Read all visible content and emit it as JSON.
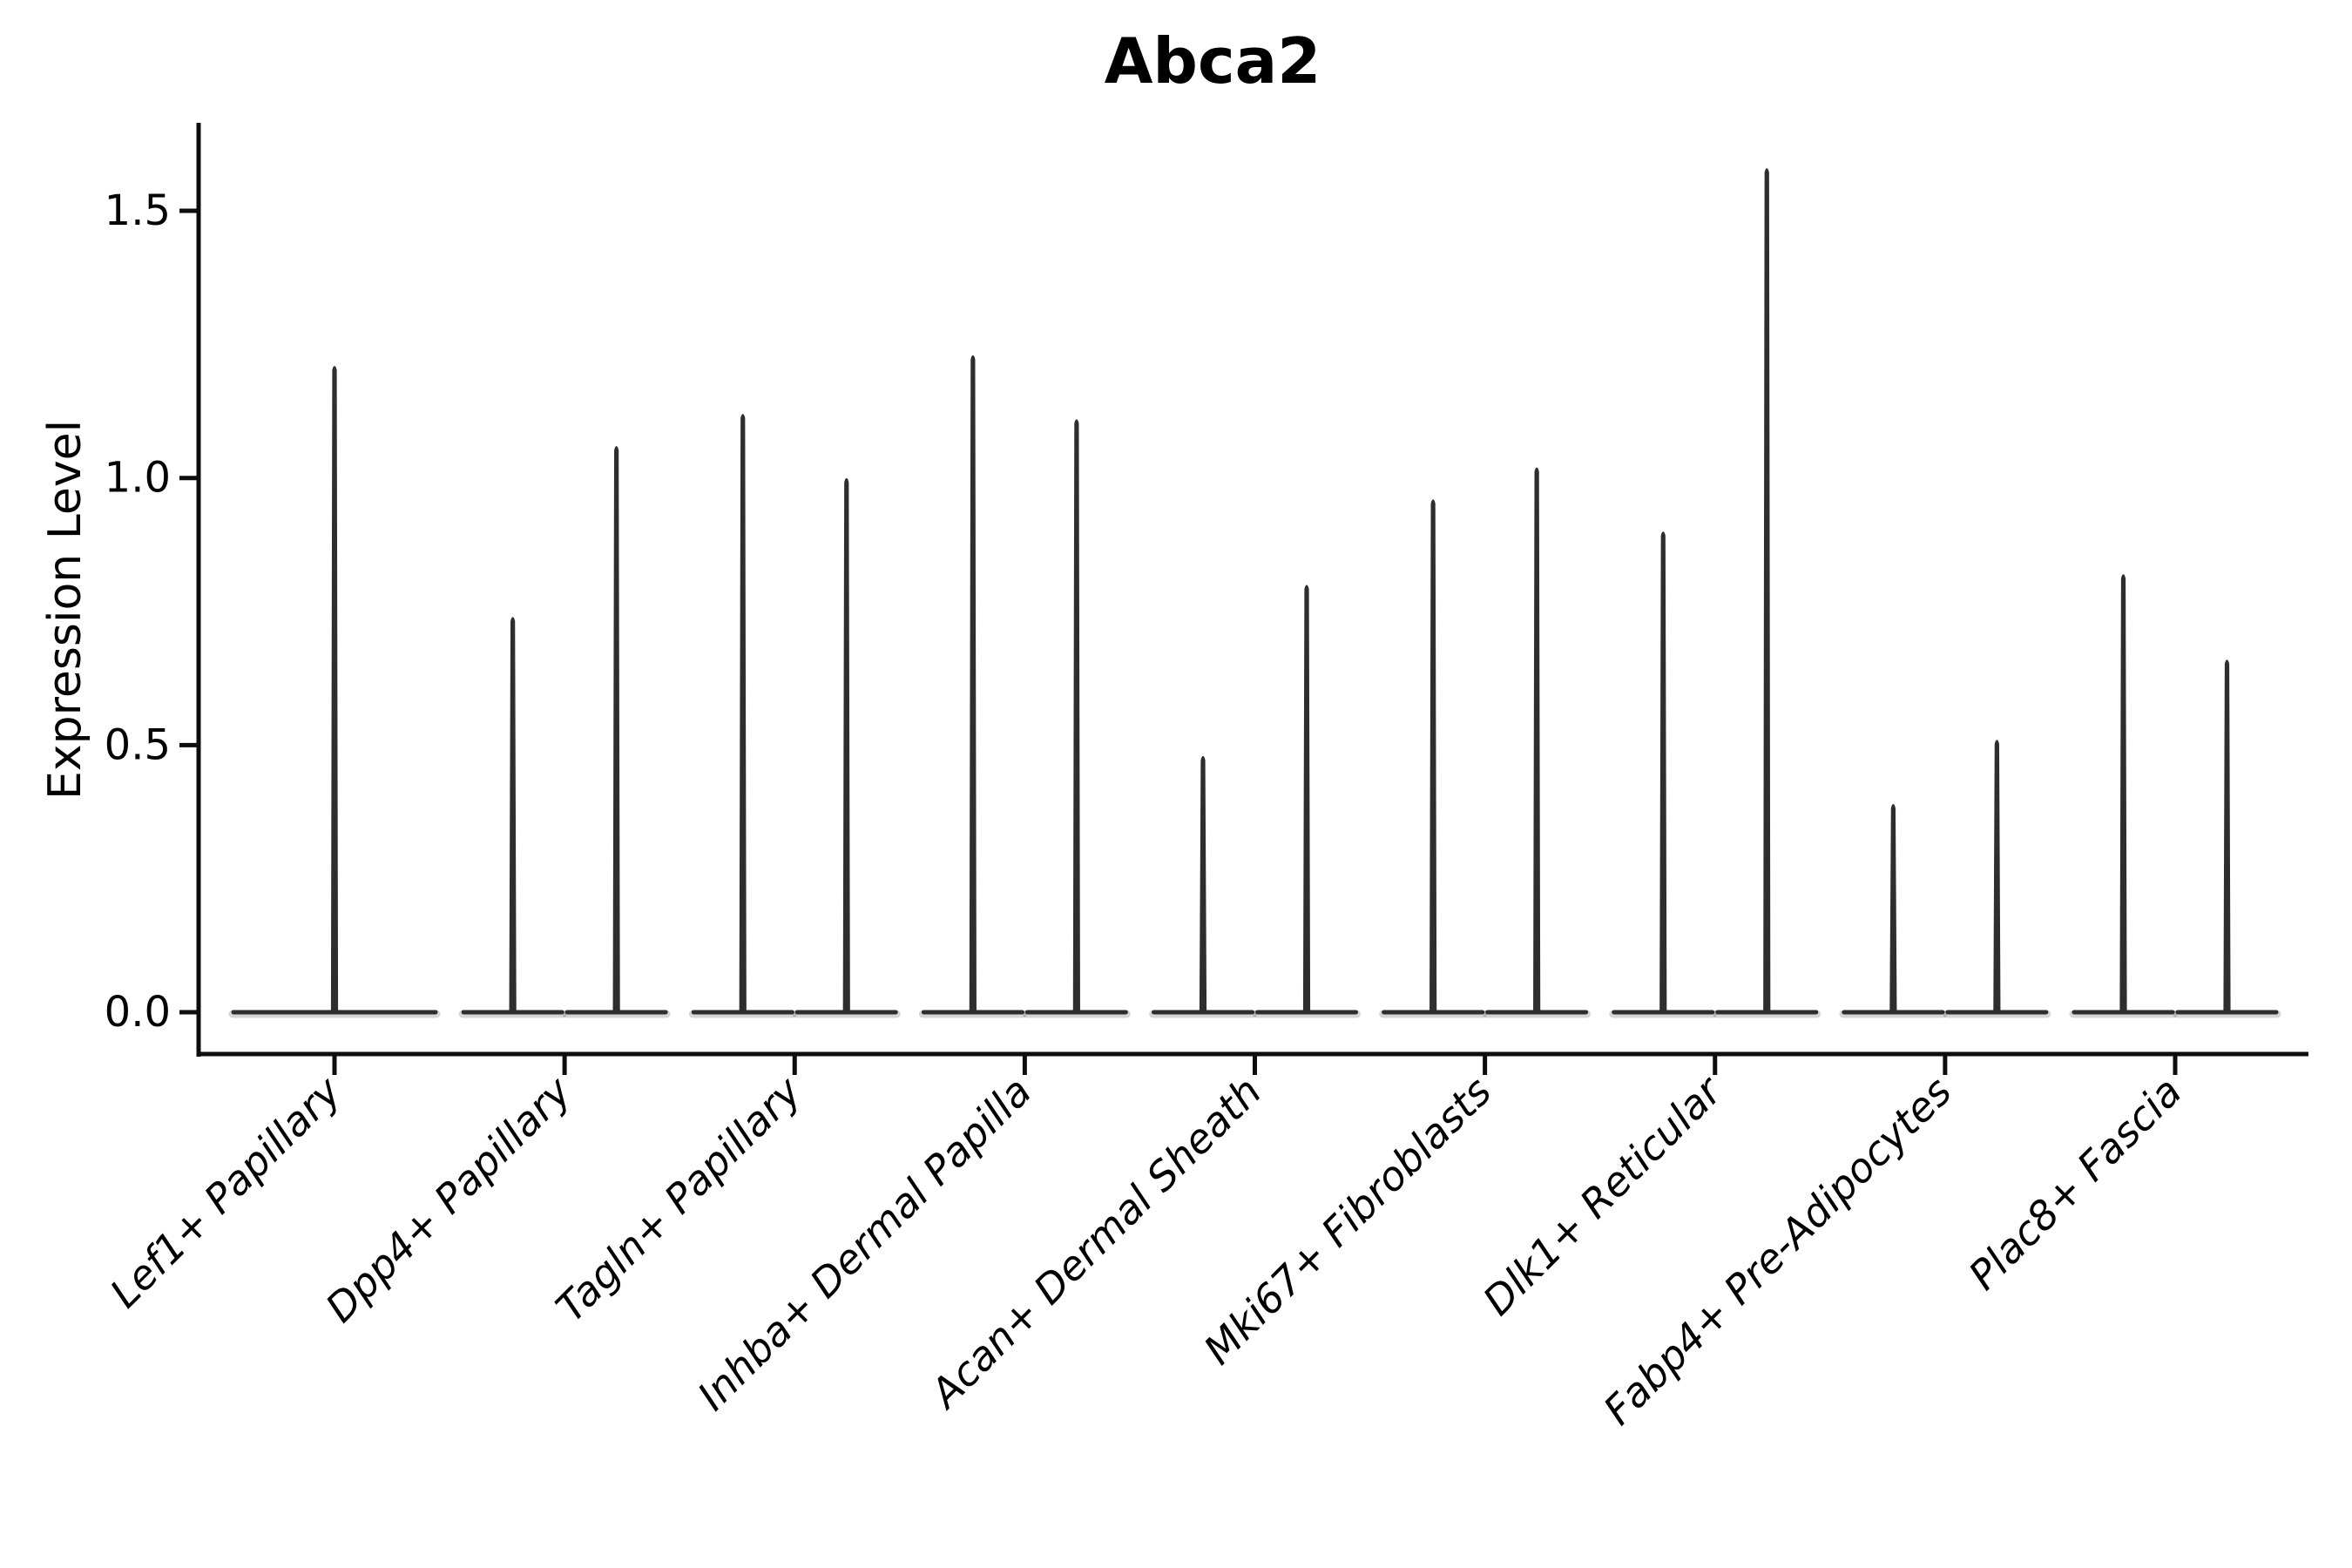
{
  "figure": {
    "background_color": "#ffffff"
  },
  "chart_data": {
    "type": "violin",
    "title": "Abca2",
    "ylabel": "Expression Level",
    "xlabel": "",
    "grid": false,
    "legend": null,
    "ylim": [
      -0.08,
      1.66
    ],
    "yticks": [
      {
        "value": 0.0,
        "label": "0.0"
      },
      {
        "value": 0.5,
        "label": "0.5"
      },
      {
        "value": 1.0,
        "label": "1.0"
      },
      {
        "value": 1.5,
        "label": "1.5"
      }
    ],
    "categories": [
      "Lef1+ Papillary",
      "Dpp4+ Papillary",
      "Tagln+ Papillary",
      "Inhba+ Dermal Papilla",
      "Acan+ Dermal Sheath",
      "Mki67+ Fibroblasts",
      "Dlk1+ Reticular",
      "Fabp4+ Pre-Adipocytes",
      "Plac8+ Fascia"
    ],
    "groups": [
      {
        "category": "Lef1+ Papillary",
        "violins": [
          {
            "baseline": 0.0,
            "max": 1.21
          }
        ]
      },
      {
        "category": "Dpp4+ Papillary",
        "violins": [
          {
            "baseline": 0.0,
            "max": 0.74
          },
          {
            "baseline": 0.0,
            "max": 1.06
          }
        ]
      },
      {
        "category": "Tagln+ Papillary",
        "violins": [
          {
            "baseline": 0.0,
            "max": 1.12
          },
          {
            "baseline": 0.0,
            "max": 1.0
          }
        ]
      },
      {
        "category": "Inhba+ Dermal Papilla",
        "violins": [
          {
            "baseline": 0.0,
            "max": 1.23
          },
          {
            "baseline": 0.0,
            "max": 1.11
          }
        ]
      },
      {
        "category": "Acan+ Dermal Sheath",
        "violins": [
          {
            "baseline": 0.0,
            "max": 0.48
          },
          {
            "baseline": 0.0,
            "max": 0.8
          }
        ]
      },
      {
        "category": "Mki67+ Fibroblasts",
        "violins": [
          {
            "baseline": 0.0,
            "max": 0.96
          },
          {
            "baseline": 0.0,
            "max": 1.02
          }
        ]
      },
      {
        "category": "Dlk1+ Reticular",
        "violins": [
          {
            "baseline": 0.0,
            "max": 0.9
          },
          {
            "baseline": 0.0,
            "max": 1.58
          }
        ]
      },
      {
        "category": "Fabp4+ Pre-Adipocytes",
        "violins": [
          {
            "baseline": 0.0,
            "max": 0.39
          },
          {
            "baseline": 0.0,
            "max": 0.51
          }
        ]
      },
      {
        "category": "Plac8+ Fascia",
        "violins": [
          {
            "baseline": 0.0,
            "max": 0.82
          },
          {
            "baseline": 0.0,
            "max": 0.66
          }
        ]
      }
    ],
    "colors": {
      "violin": "#2e2e2e",
      "axis": "#0d0d0d",
      "text": "#000000"
    }
  }
}
